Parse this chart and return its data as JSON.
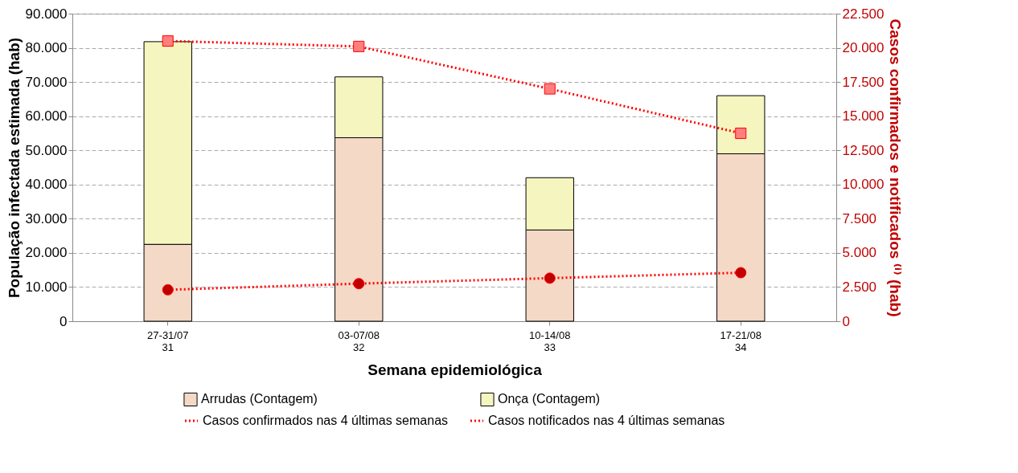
{
  "chart_data": {
    "type": "bar",
    "stacked": true,
    "xlabel": "Semana epidemiológica",
    "ylabel": "População infectada estimada (hab)",
    "y2label": "Casos confirmados e notificados ⁽ⁱ⁾ (hab)",
    "categories": [
      "27-31/07\n31",
      "03-07/08\n32",
      "10-14/08\n33",
      "17-21/08\n34"
    ],
    "series": [
      {
        "name": "Arrudas (Contagem)",
        "color": "#f4d9c6",
        "values": [
          22500,
          53700,
          26700,
          49000
        ]
      },
      {
        "name": "Onça (Contagem)",
        "color": "#f5f5bf",
        "values": [
          59300,
          17800,
          15300,
          17000
        ]
      },
      {
        "name": "Casos confirmados nas 4 últimas semanas",
        "type": "line",
        "axis": "y2",
        "color": "#c00000",
        "line_style": "dotted",
        "marker": "circle",
        "values": [
          2300,
          2750,
          3150,
          3550
        ]
      },
      {
        "name": "Casos notificados nas 4 últimas semanas",
        "type": "line",
        "axis": "y2",
        "color": "#ff7f7f",
        "line_style": "dotted",
        "marker": "square",
        "values": [
          20500,
          20100,
          17000,
          13750
        ]
      }
    ],
    "ylim": [
      0,
      90000
    ],
    "yticks": [
      {
        "value": 0,
        "label": "0"
      },
      {
        "value": 10000,
        "label": "10.000"
      },
      {
        "value": 20000,
        "label": "20.000"
      },
      {
        "value": 30000,
        "label": "30.000"
      },
      {
        "value": 40000,
        "label": "40.000"
      },
      {
        "value": 50000,
        "label": "50.000"
      },
      {
        "value": 60000,
        "label": "60.000"
      },
      {
        "value": 70000,
        "label": "70.000"
      },
      {
        "value": 80000,
        "label": "80.000"
      },
      {
        "value": 90000,
        "label": "90.000"
      }
    ],
    "y2lim": [
      0,
      22500
    ],
    "y2ticks": [
      {
        "value": 0,
        "label": "0"
      },
      {
        "value": 2500,
        "label": "2.500"
      },
      {
        "value": 5000,
        "label": "5.000"
      },
      {
        "value": 7500,
        "label": "7.500"
      },
      {
        "value": 10000,
        "label": "10.000"
      },
      {
        "value": 12500,
        "label": "12.500"
      },
      {
        "value": 15000,
        "label": "15.000"
      },
      {
        "value": 17500,
        "label": "17.500"
      },
      {
        "value": 20000,
        "label": "20.000"
      },
      {
        "value": 22500,
        "label": "22.500"
      }
    ],
    "grid": "y",
    "legend": "bottom"
  }
}
